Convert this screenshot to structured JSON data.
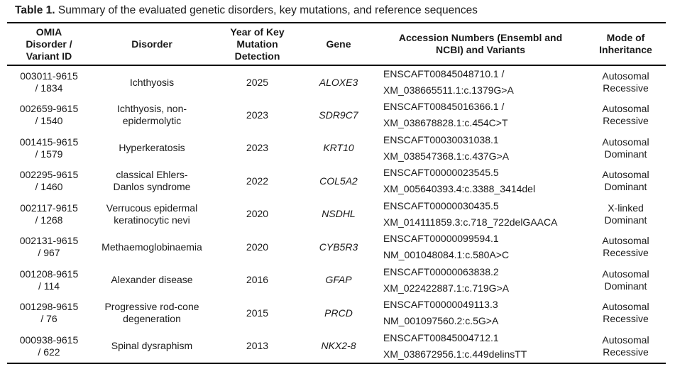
{
  "caption": {
    "label": "Table 1.",
    "text": " Summary of the evaluated genetic disorders, key mutations, and reference sequences"
  },
  "headers": {
    "omia": [
      "OMIA",
      "Disorder /",
      "Variant ID"
    ],
    "disorder": [
      "Disorder"
    ],
    "year": [
      "Year of Key",
      "Mutation",
      "Detection"
    ],
    "gene": [
      "Gene"
    ],
    "accession": [
      "Accession Numbers (Ensembl and",
      "NCBI) and Variants"
    ],
    "mode": [
      "Mode of",
      "Inheritance"
    ]
  },
  "rows": [
    {
      "id": [
        "003011-9615",
        "/ 1834"
      ],
      "disorder": [
        "Ichthyosis"
      ],
      "year": "2025",
      "gene": "ALOXE3",
      "acc": [
        "ENSCAFT00845048710.1 /",
        "XM_038665511.1:c.1379G>A"
      ],
      "mode": [
        "Autosomal",
        "Recessive"
      ]
    },
    {
      "id": [
        "002659-9615",
        "/ 1540"
      ],
      "disorder": [
        "Ichthyosis, non-",
        "epidermolytic"
      ],
      "year": "2023",
      "gene": "SDR9C7",
      "acc": [
        "ENSCAFT00845016366.1 /",
        "XM_038678828.1:c.454C>T"
      ],
      "mode": [
        "Autosomal",
        "Recessive"
      ]
    },
    {
      "id": [
        "001415-9615",
        "/ 1579"
      ],
      "disorder": [
        "Hyperkeratosis"
      ],
      "year": "2023",
      "gene": "KRT10",
      "acc": [
        "ENSCAFT00030031038.1",
        "XM_038547368.1:c.437G>A"
      ],
      "mode": [
        "Autosomal",
        "Dominant"
      ]
    },
    {
      "id": [
        "002295-9615",
        "/ 1460"
      ],
      "disorder": [
        "classical Ehlers-",
        "Danlos syndrome"
      ],
      "year": "2022",
      "gene": "COL5A2",
      "acc": [
        "ENSCAFT00000023545.5",
        "XM_005640393.4:c.3388_3414del"
      ],
      "mode": [
        "Autosomal",
        "Dominant"
      ]
    },
    {
      "id": [
        "002117-9615",
        "/ 1268"
      ],
      "disorder": [
        "Verrucous epidermal",
        "keratinocytic nevi"
      ],
      "year": "2020",
      "gene": "NSDHL",
      "acc": [
        "ENSCAFT00000030435.5",
        "XM_014111859.3:c.718_722delGAACA"
      ],
      "mode": [
        "X-linked",
        "Dominant"
      ]
    },
    {
      "id": [
        "002131-9615",
        "/ 967"
      ],
      "disorder": [
        "Methaemoglobinaemia"
      ],
      "year": "2020",
      "gene": "CYB5R3",
      "acc": [
        "ENSCAFT00000099594.1",
        "NM_001048084.1:c.580A>C"
      ],
      "mode": [
        "Autosomal",
        "Recessive"
      ]
    },
    {
      "id": [
        "001208-9615",
        "/ 114"
      ],
      "disorder": [
        "Alexander disease"
      ],
      "year": "2016",
      "gene": "GFAP",
      "acc": [
        "ENSCAFT00000063838.2",
        "XM_022422887.1:c.719G>A"
      ],
      "mode": [
        "Autosomal",
        "Dominant"
      ]
    },
    {
      "id": [
        "001298-9615",
        "/ 76"
      ],
      "disorder": [
        "Progressive rod-cone",
        "degeneration"
      ],
      "year": "2015",
      "gene": "PRCD",
      "acc": [
        "ENSCAFT00000049113.3",
        "NM_001097560.2:c.5G>A"
      ],
      "mode": [
        "Autosomal",
        "Recessive"
      ]
    },
    {
      "id": [
        "000938-9615",
        "/ 622"
      ],
      "disorder": [
        "Spinal dysraphism"
      ],
      "year": "2013",
      "gene": "NKX2-8",
      "acc": [
        "ENSCAFT00845004712.1",
        "XM_038672956.1:c.449delinsTT"
      ],
      "mode": [
        "Autosomal",
        "Recessive"
      ]
    }
  ]
}
